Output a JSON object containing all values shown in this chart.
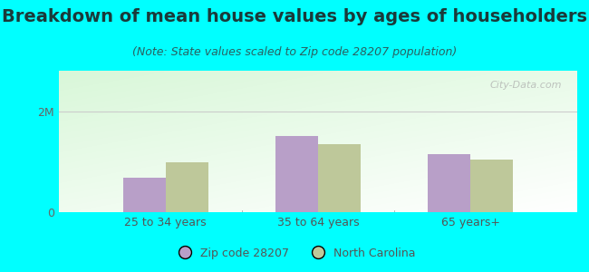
{
  "title": "Breakdown of mean house values by ages of householders",
  "subtitle": "(Note: State values scaled to Zip code 28207 population)",
  "categories": [
    "25 to 34 years",
    "35 to 64 years",
    "65 years+"
  ],
  "zip_values": [
    680000,
    1500000,
    1150000
  ],
  "state_values": [
    980000,
    1350000,
    1050000
  ],
  "ylim": [
    0,
    2800000
  ],
  "yticks": [
    0,
    2000000
  ],
  "ytick_labels": [
    "0",
    "2M"
  ],
  "zip_color": "#b89fc8",
  "state_color": "#bec89a",
  "background_color": "#00ffff",
  "zip_label": "Zip code 28207",
  "state_label": "North Carolina",
  "title_fontsize": 14,
  "subtitle_fontsize": 9,
  "watermark": "City-Data.com"
}
